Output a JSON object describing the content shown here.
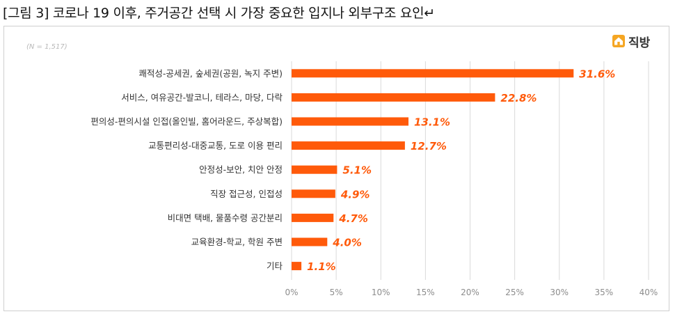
{
  "caption": "[그림 3] 코로나 19 이후, 주거공간 선택 시 가장 중요한 입지나 외부구조 요인↵",
  "logo": {
    "text": "직방",
    "icon": "house-logo-icon",
    "color": "#f5a623"
  },
  "sample_size": "(N = 1,517)",
  "colors": {
    "bar": "#ff5a0a",
    "label": "#ff5a0a",
    "grid": "#d9d9d9",
    "tick": "#8c8c8c",
    "category": "#333333"
  },
  "chart_data": {
    "type": "bar",
    "orientation": "horizontal",
    "title": "",
    "xlabel": "",
    "ylabel": "",
    "categories": [
      "쾌적성-공세권, 숲세권(공원, 녹지 주변)",
      "서비스, 여유공간-발코니, 테라스, 마당, 다락",
      "편의성-편의시설 인접(올인빌, 홈어라운드, 주상복합)",
      "교통편리성-대중교통, 도로 이용 편리",
      "안정성-보안, 치안 안정",
      "직장 접근성, 인접성",
      "비대면 택배, 물품수령 공간분리",
      "교육환경-학교, 학원 주변",
      "기타"
    ],
    "values": [
      31.6,
      22.8,
      13.1,
      12.7,
      5.1,
      4.9,
      4.7,
      4.0,
      1.1
    ],
    "value_labels": [
      "31.6%",
      "22.8%",
      "13.1%",
      "12.7%",
      "5.1%",
      "4.9%",
      "4.7%",
      "4.0%",
      "1.1%"
    ],
    "xlim": [
      0,
      40
    ],
    "x_ticks": [
      0,
      5,
      10,
      15,
      20,
      25,
      30,
      35,
      40
    ],
    "x_tick_labels": [
      "0%",
      "5%",
      "10%",
      "15%",
      "20%",
      "25%",
      "30%",
      "35%",
      "40%"
    ],
    "grid": true,
    "legend": false
  }
}
